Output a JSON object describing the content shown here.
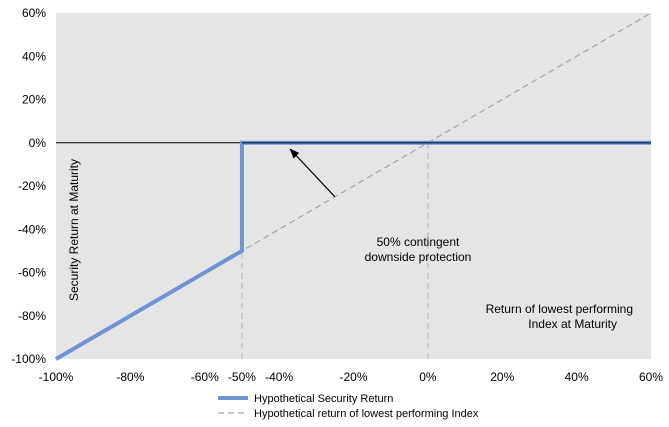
{
  "chart_data": {
    "type": "line",
    "title": "",
    "xlabel": "Return of lowest performing Index at Maturity",
    "ylabel": "Security Return at Maturity",
    "xlim": [
      -100,
      60
    ],
    "ylim": [
      -100,
      60
    ],
    "x_ticks": [
      "-100%",
      "-80%",
      "-60%",
      "-50%",
      "-40%",
      "-20%",
      "0%",
      "20%",
      "40%",
      "60%"
    ],
    "x_tick_values": [
      -100,
      -80,
      -60,
      -50,
      -40,
      -20,
      0,
      20,
      40,
      60
    ],
    "y_ticks": [
      "60%",
      "40%",
      "20%",
      "0%",
      "-20%",
      "-40%",
      "-60%",
      "-80%",
      "-100%"
    ],
    "y_tick_values": [
      60,
      40,
      20,
      0,
      -20,
      -40,
      -60,
      -80,
      -100
    ],
    "series": [
      {
        "name": "Hypothetical Security Return",
        "color": "#6f93d3",
        "style": "solid",
        "x": [
          -100,
          -50,
          -50,
          60
        ],
        "y": [
          -100,
          -50,
          0,
          0
        ]
      },
      {
        "name": "Hypothetical return of lowest performing Index",
        "color": "#a6a6a6",
        "style": "dashed",
        "x": [
          -100,
          60
        ],
        "y": [
          -100,
          60
        ]
      }
    ],
    "reference_lines": [
      {
        "axis": "x",
        "value": -50,
        "style": "dashed"
      },
      {
        "axis": "x",
        "value": 0,
        "style": "dashed"
      },
      {
        "axis": "y",
        "value": 0,
        "style": "solid"
      }
    ],
    "annotation": {
      "lines": [
        "50% contingent",
        "downside protection"
      ],
      "arrow_from": [
        -25,
        -25
      ],
      "arrow_to": [
        -37,
        -3
      ]
    },
    "legend": {
      "position": "bottom"
    },
    "grid": false,
    "plot_background": "#e5e5e5",
    "accent_dark": "#1f3864"
  }
}
